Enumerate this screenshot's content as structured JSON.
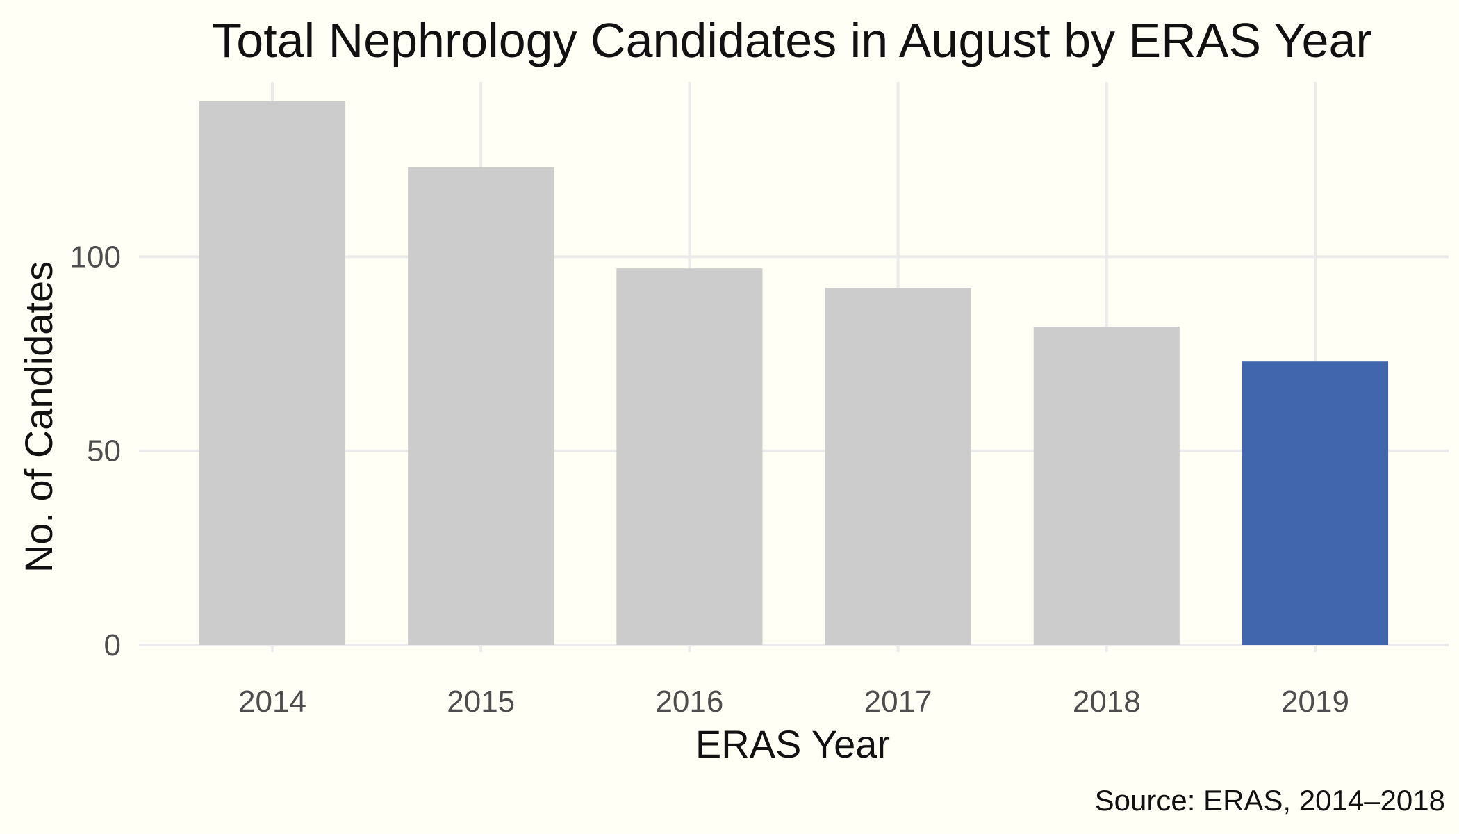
{
  "chart_data": {
    "type": "bar",
    "title": "Total Nephrology Candidates in August by ERAS Year",
    "xlabel": "ERAS Year",
    "ylabel": "No. of Candidates",
    "caption": "Source: ERAS, 2014–2018",
    "categories": [
      "2014",
      "2015",
      "2016",
      "2017",
      "2018",
      "2019"
    ],
    "values": [
      140,
      123,
      97,
      92,
      82,
      73
    ],
    "bar_colors": [
      "#cccccc",
      "#cccccc",
      "#cccccc",
      "#cccccc",
      "#cccccc",
      "#4266ad"
    ],
    "ylim": [
      0,
      145
    ],
    "yticks": [
      0,
      50,
      100
    ],
    "ytick_labels": [
      "0",
      "50",
      "100"
    ],
    "grid": true,
    "legend": "none"
  },
  "colors": {
    "background": "#fffff5",
    "grid": "#ebebeb",
    "highlight": "#4266ad",
    "default_bar": "#cccccc"
  }
}
